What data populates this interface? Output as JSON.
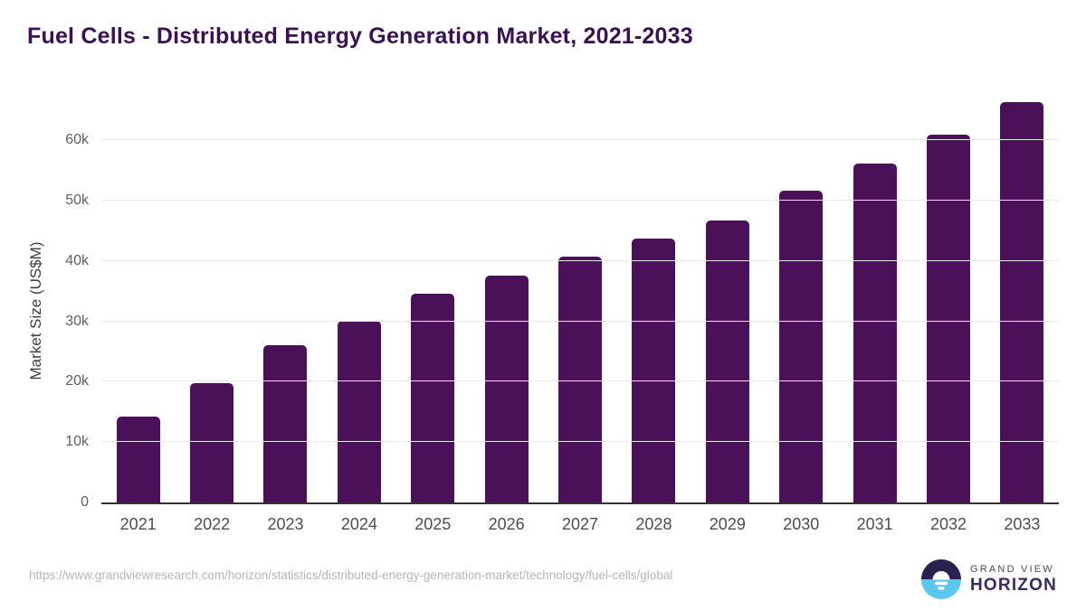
{
  "title": "Fuel Cells - Distributed Energy Generation Market, 2021-2033",
  "chart_data": {
    "type": "bar",
    "title": "Fuel Cells - Distributed Energy Generation Market, 2021-2033",
    "categories": [
      "2021",
      "2022",
      "2023",
      "2024",
      "2025",
      "2026",
      "2027",
      "2028",
      "2029",
      "2030",
      "2031",
      "2032",
      "2033"
    ],
    "values": [
      14300,
      19700,
      26000,
      30100,
      34600,
      37600,
      40700,
      43800,
      46800,
      51700,
      56100,
      61000,
      66400
    ],
    "xlabel": "",
    "ylabel": "Market Size (US$M)",
    "ylim": [
      0,
      68000
    ],
    "yticks": [
      0,
      10000,
      20000,
      30000,
      40000,
      50000,
      60000
    ],
    "ytick_labels": [
      "0",
      "10k",
      "20k",
      "30k",
      "40k",
      "50k",
      "60k"
    ],
    "grid": true,
    "legend": "none"
  },
  "footer": {
    "source_url": "https://www.grandviewresearch.com/horizon/statistics/distributed-energy-generation-market/technology/fuel-cells/global",
    "brand_line1": "GRAND VIEW",
    "brand_line2": "HORIZON"
  },
  "colors": {
    "bar": "#4a1159",
    "title": "#3a1152",
    "gridline": "#e8e8eb",
    "axis_line": "#333333",
    "ytick_text": "#5f5f5f",
    "xtick_text": "#4d4d4d",
    "yaxis_title_text": "#3d3d3d",
    "url_text": "#b5b5b5",
    "brand_line1_text": "#4b4656",
    "brand_line2_text": "#3b2a5c",
    "logo_top": "#2b2150",
    "logo_bottom": "#5bc6ee"
  }
}
